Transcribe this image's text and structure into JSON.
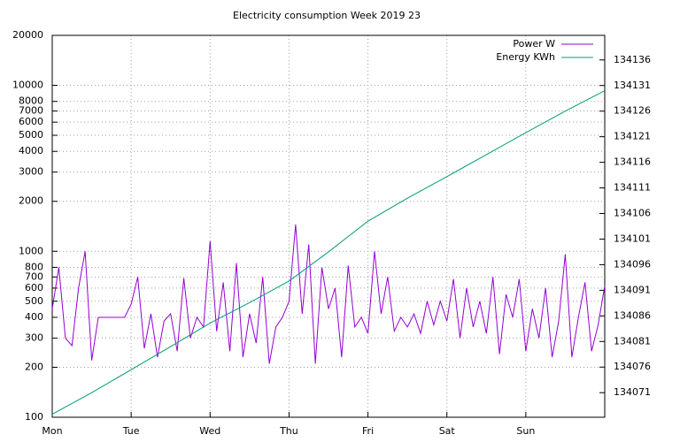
{
  "chart_data": {
    "type": "line",
    "title": "Electricity consumption Week 2019 23",
    "x": [
      0,
      2,
      4,
      6,
      8,
      10,
      12,
      14,
      16,
      18,
      20,
      22,
      24,
      26,
      28,
      30,
      32,
      34,
      36,
      38,
      40,
      42,
      44,
      46,
      48,
      50,
      52,
      54,
      56,
      58,
      60,
      62,
      64,
      66,
      68,
      70,
      72,
      74,
      76,
      78,
      80,
      82,
      84,
      86,
      88,
      90,
      92,
      94,
      96,
      98,
      100,
      102,
      104,
      106,
      108,
      110,
      112,
      114,
      116,
      118,
      120,
      122,
      124,
      126,
      128,
      130,
      132,
      134,
      136,
      138,
      140,
      142,
      144,
      146,
      148,
      150,
      152,
      154,
      156,
      158,
      160,
      162,
      164,
      166,
      168
    ],
    "xlim": [
      0,
      168
    ],
    "xticks": [
      {
        "value": 0,
        "label": "Mon"
      },
      {
        "value": 24,
        "label": "Tue"
      },
      {
        "value": 48,
        "label": "Wed"
      },
      {
        "value": 72,
        "label": "Thu"
      },
      {
        "value": 96,
        "label": "Fri"
      },
      {
        "value": 120,
        "label": "Sat"
      },
      {
        "value": 144,
        "label": "Sun"
      }
    ],
    "ylim": [
      100,
      20000
    ],
    "log_scale": true,
    "yticks": [
      100,
      200,
      300,
      400,
      500,
      600,
      700,
      800,
      1000,
      2000,
      3000,
      4000,
      5000,
      6000,
      7000,
      8000,
      10000,
      20000
    ],
    "y2lim": [
      134066.2,
      134140.8
    ],
    "y2ticks": [
      134071,
      134076,
      134081,
      134086,
      134091,
      134096,
      134101,
      134106,
      134111,
      134116,
      134121,
      134126,
      134131,
      134136
    ],
    "grid": true,
    "legend": "top-right",
    "series": [
      {
        "name": "Power W",
        "color": "#9400d3",
        "values": [
          450,
          800,
          300,
          270,
          600,
          1000,
          220,
          400,
          400,
          400,
          400,
          400,
          480,
          700,
          260,
          420,
          230,
          380,
          420,
          250,
          690,
          300,
          400,
          350,
          1150,
          330,
          650,
          250,
          850,
          230,
          420,
          280,
          700,
          210,
          350,
          400,
          500,
          1450,
          420,
          1100,
          210,
          800,
          450,
          600,
          230,
          820,
          350,
          400,
          320,
          1000,
          420,
          700,
          330,
          400,
          350,
          420,
          320,
          500,
          360,
          500,
          380,
          680,
          300,
          600,
          350,
          500,
          320,
          700,
          240,
          550,
          400,
          680,
          250,
          450,
          300,
          600,
          230,
          380,
          960,
          230,
          400,
          650,
          250,
          360,
          620
        ]
      },
      {
        "name": "Energy KWh",
        "color": "#009e73",
        "axis": "y2",
        "x": [
          0,
          12,
          24,
          36,
          48,
          60,
          72,
          84,
          96,
          108,
          120,
          132,
          144,
          156,
          168
        ],
        "values": [
          134066.8,
          134071,
          134075.5,
          134080,
          134084.6,
          134088.6,
          134092.8,
          134098.5,
          134104.5,
          134109,
          134113.2,
          134117.5,
          134121.8,
          134126,
          134130
        ]
      }
    ]
  }
}
